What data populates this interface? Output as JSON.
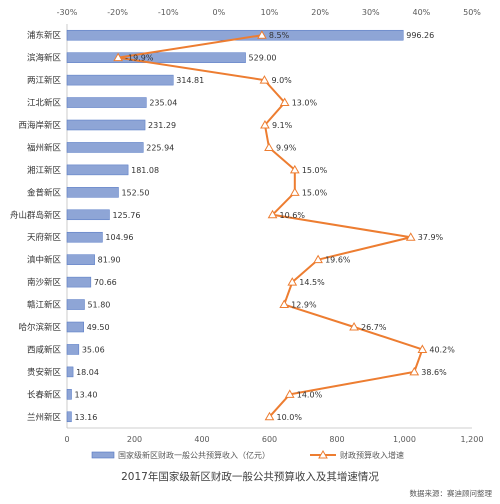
{
  "chart_data": {
    "type": "bar+line",
    "categories": [
      "浦东新区",
      "滨海新区",
      "两江新区",
      "江北新区",
      "西海岸新区",
      "福州新区",
      "湘江新区",
      "金普新区",
      "舟山群岛新区",
      "天府新区",
      "滇中新区",
      "南沙新区",
      "赣江新区",
      "哈尔滨新区",
      "西咸新区",
      "贵安新区",
      "长春新区",
      "兰州新区"
    ],
    "series": [
      {
        "name": "国家级新区财政一般公共预算收入（亿元）",
        "type": "bar",
        "axis": "bottom",
        "values": [
          996.26,
          529.0,
          314.81,
          235.04,
          231.29,
          225.94,
          181.08,
          152.5,
          125.76,
          104.96,
          81.9,
          70.66,
          51.8,
          49.5,
          35.06,
          18.04,
          13.4,
          13.16
        ],
        "labels": [
          "996.26",
          "529.00",
          "314.81",
          "235.04",
          "231.29",
          "225.94",
          "181.08",
          "152.50",
          "125.76",
          "104.96",
          "81.90",
          "70.66",
          "51.80",
          "49.50",
          "35.06",
          "18.04",
          "13.40",
          "13.16"
        ],
        "color": "#8ea5d6",
        "border": "#4f74c2"
      },
      {
        "name": "财政预算收入增速",
        "type": "line",
        "axis": "top",
        "values": [
          8.5,
          -19.9,
          9.0,
          13.0,
          9.1,
          9.9,
          15.0,
          15.0,
          10.6,
          37.9,
          19.6,
          14.5,
          12.9,
          26.7,
          40.2,
          38.6,
          14.0,
          10.0
        ],
        "labels": [
          "8.5%",
          "-19.9%",
          "9.0%",
          "13.0%",
          "9.1%",
          "9.9%",
          "15.0%",
          "15.0%",
          "10.6%",
          "37.9%",
          "19.6%",
          "14.5%",
          "12.9%",
          "26.7%",
          "40.2%",
          "38.6%",
          "14.0%",
          "10.0%"
        ],
        "color": "#ed7d31"
      }
    ],
    "bottom_axis": {
      "min": 0,
      "max": 1200,
      "ticks": [
        0,
        200,
        400,
        600,
        800,
        1000,
        1200
      ],
      "tick_labels": [
        "0",
        "200",
        "400",
        "600",
        "800",
        "1,000",
        "1,200"
      ]
    },
    "top_axis": {
      "min": -30,
      "max": 50,
      "ticks": [
        -30,
        -20,
        -10,
        0,
        10,
        20,
        30,
        40,
        50
      ],
      "tick_labels": [
        "-30%",
        "-20%",
        "-10%",
        "0%",
        "10%",
        "20%",
        "30%",
        "40%",
        "50%"
      ]
    },
    "grid": false,
    "legend_position": "bottom",
    "title": "2017年国家级新区财政一般公共预算收入及其增速情况",
    "source": "数据来源：赛迪顾问整理"
  }
}
